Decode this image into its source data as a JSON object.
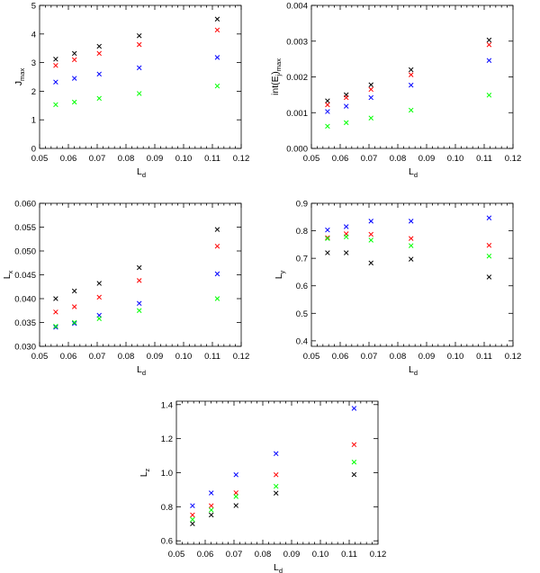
{
  "colors": {
    "black": "#000000",
    "red": "#ff0000",
    "blue": "#0000ff",
    "green": "#00ff00"
  },
  "chart_data": [
    {
      "type": "scatter",
      "xlabel": "L",
      "xlabel_sub": "d",
      "ylabel": "J",
      "ylabel_sub": "max",
      "xlim": [
        0.05,
        0.12
      ],
      "ylim": [
        0,
        5
      ],
      "xticks": [
        "0.05",
        "0.06",
        "0.07",
        "0.08",
        "0.09",
        "0.10",
        "0.11",
        "0.12"
      ],
      "yticks": [
        "0",
        "1",
        "2",
        "3",
        "4",
        "5"
      ],
      "x": [
        0.0556,
        0.0621,
        0.0707,
        0.0846,
        0.1117
      ],
      "series": [
        {
          "color": "#000000",
          "values": [
            3.12,
            3.32,
            3.57,
            3.94,
            4.52
          ]
        },
        {
          "color": "#ff0000",
          "values": [
            2.9,
            3.1,
            3.32,
            3.63,
            4.14
          ]
        },
        {
          "color": "#0000ff",
          "values": [
            2.32,
            2.45,
            2.6,
            2.82,
            3.18
          ]
        },
        {
          "color": "#00ff00",
          "values": [
            1.53,
            1.62,
            1.75,
            1.92,
            2.18
          ]
        }
      ]
    },
    {
      "type": "scatter",
      "xlabel": "L",
      "xlabel_sub": "d",
      "ylabel": "int(E",
      "ylabel_sub1": "j",
      "ylabel_mid": ")",
      "ylabel_sub": "max",
      "xlim": [
        0.05,
        0.12
      ],
      "ylim": [
        0,
        0.004
      ],
      "xticks": [
        "0.05",
        "0.06",
        "0.07",
        "0.08",
        "0.09",
        "0.10",
        "0.11",
        "0.12"
      ],
      "yticks": [
        "0.000",
        "0.001",
        "0.002",
        "0.003",
        "0.004"
      ],
      "x": [
        0.0556,
        0.0621,
        0.0707,
        0.0846,
        0.1117
      ],
      "series": [
        {
          "color": "#000000",
          "values": [
            0.00133,
            0.0015,
            0.00178,
            0.0022,
            0.00303
          ]
        },
        {
          "color": "#ff0000",
          "values": [
            0.00122,
            0.00142,
            0.00165,
            0.00206,
            0.0029
          ]
        },
        {
          "color": "#0000ff",
          "values": [
            0.00103,
            0.00118,
            0.00142,
            0.00177,
            0.00246
          ]
        },
        {
          "color": "#00ff00",
          "values": [
            0.00062,
            0.00072,
            0.00085,
            0.00107,
            0.00149
          ]
        }
      ]
    },
    {
      "type": "scatter",
      "xlabel": "L",
      "xlabel_sub": "d",
      "ylabel": "L",
      "ylabel_sub": "x",
      "xlim": [
        0.05,
        0.12
      ],
      "ylim": [
        0.03,
        0.06
      ],
      "xticks": [
        "0.05",
        "0.06",
        "0.07",
        "0.08",
        "0.09",
        "0.10",
        "0.11",
        "0.12"
      ],
      "yticks": [
        "0.030",
        "0.035",
        "0.040",
        "0.045",
        "0.050",
        "0.055",
        "0.060"
      ],
      "x": [
        0.0556,
        0.0621,
        0.0707,
        0.0846,
        0.1117
      ],
      "series": [
        {
          "color": "#000000",
          "values": [
            0.04,
            0.0416,
            0.0432,
            0.0465,
            0.0545
          ]
        },
        {
          "color": "#ff0000",
          "values": [
            0.0372,
            0.0383,
            0.0403,
            0.0438,
            0.051
          ]
        },
        {
          "color": "#0000ff",
          "values": [
            0.034,
            0.0348,
            0.0365,
            0.039,
            0.0452
          ]
        },
        {
          "color": "#00ff00",
          "values": [
            0.0342,
            0.035,
            0.0358,
            0.0375,
            0.04
          ]
        }
      ]
    },
    {
      "type": "scatter",
      "xlabel": "L",
      "xlabel_sub": "d",
      "ylabel": "L",
      "ylabel_sub": "y",
      "xlim": [
        0.05,
        0.12
      ],
      "ylim": [
        0.38,
        0.9
      ],
      "xticks": [
        "0.05",
        "0.06",
        "0.07",
        "0.08",
        "0.09",
        "0.10",
        "0.11",
        "0.12"
      ],
      "yticks": [
        "0.4",
        "0.5",
        "0.6",
        "0.7",
        "0.8",
        "0.9"
      ],
      "x": [
        0.0556,
        0.0621,
        0.0707,
        0.0846,
        0.1117
      ],
      "series": [
        {
          "color": "#000000",
          "values": [
            0.72,
            0.72,
            0.683,
            0.697,
            0.632
          ]
        },
        {
          "color": "#ff0000",
          "values": [
            0.775,
            0.789,
            0.787,
            0.772,
            0.747
          ]
        },
        {
          "color": "#0000ff",
          "values": [
            0.803,
            0.815,
            0.835,
            0.835,
            0.847
          ]
        },
        {
          "color": "#00ff00",
          "values": [
            0.772,
            0.778,
            0.766,
            0.746,
            0.708
          ]
        }
      ]
    },
    {
      "type": "scatter",
      "xlabel": "L",
      "xlabel_sub": "d",
      "ylabel": "L",
      "ylabel_sub": "z",
      "xlim": [
        0.05,
        0.12
      ],
      "ylim": [
        0.58,
        1.42
      ],
      "xticks": [
        "0.05",
        "0.06",
        "0.07",
        "0.08",
        "0.09",
        "0.10",
        "0.11",
        "0.12"
      ],
      "yticks": [
        "0.6",
        "0.8",
        "1.0",
        "1.2",
        "1.4"
      ],
      "x": [
        0.0556,
        0.0621,
        0.0707,
        0.0846,
        0.1117
      ],
      "series": [
        {
          "color": "#000000",
          "values": [
            0.7,
            0.752,
            0.807,
            0.88,
            0.989
          ]
        },
        {
          "color": "#ff0000",
          "values": [
            0.752,
            0.806,
            0.882,
            0.988,
            1.165
          ]
        },
        {
          "color": "#0000ff",
          "values": [
            0.806,
            0.881,
            0.988,
            1.112,
            1.378
          ]
        },
        {
          "color": "#00ff00",
          "values": [
            0.725,
            0.781,
            0.86,
            0.92,
            1.062
          ]
        }
      ]
    }
  ]
}
